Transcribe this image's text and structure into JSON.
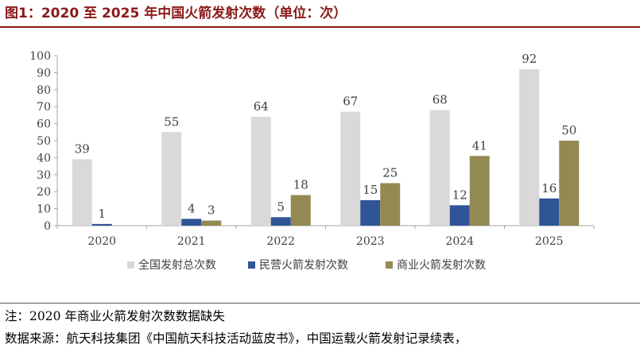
{
  "title": "图1：2020 至 2025 年中国火箭发射次数（单位：次）",
  "note": "注：2020 年商业火箭发射次数数据缺失",
  "source": "数据来源：航天科技集团《中国航天科技活动蓝皮书》，中国运载火箭发射记录续表，",
  "chart_data": {
    "type": "bar",
    "categories": [
      "2020",
      "2021",
      "2022",
      "2023",
      "2024",
      "2025"
    ],
    "series": [
      {
        "name": "全国发射总次数",
        "values": [
          39,
          55,
          64,
          67,
          68,
          92
        ],
        "color": "#d9d9d9"
      },
      {
        "name": "民营火箭发射次数",
        "values": [
          1,
          4,
          5,
          15,
          12,
          16
        ],
        "color": "#2f5597"
      },
      {
        "name": "商业火箭发射次数",
        "values": [
          null,
          3,
          18,
          25,
          41,
          50
        ],
        "color": "#938953"
      }
    ],
    "y_ticks": [
      "0",
      "10",
      "20",
      "30",
      "40",
      "50",
      "60",
      "70",
      "80",
      "90",
      "100"
    ],
    "ylim": [
      0,
      100
    ],
    "grid": false,
    "legend_position": "bottom"
  }
}
